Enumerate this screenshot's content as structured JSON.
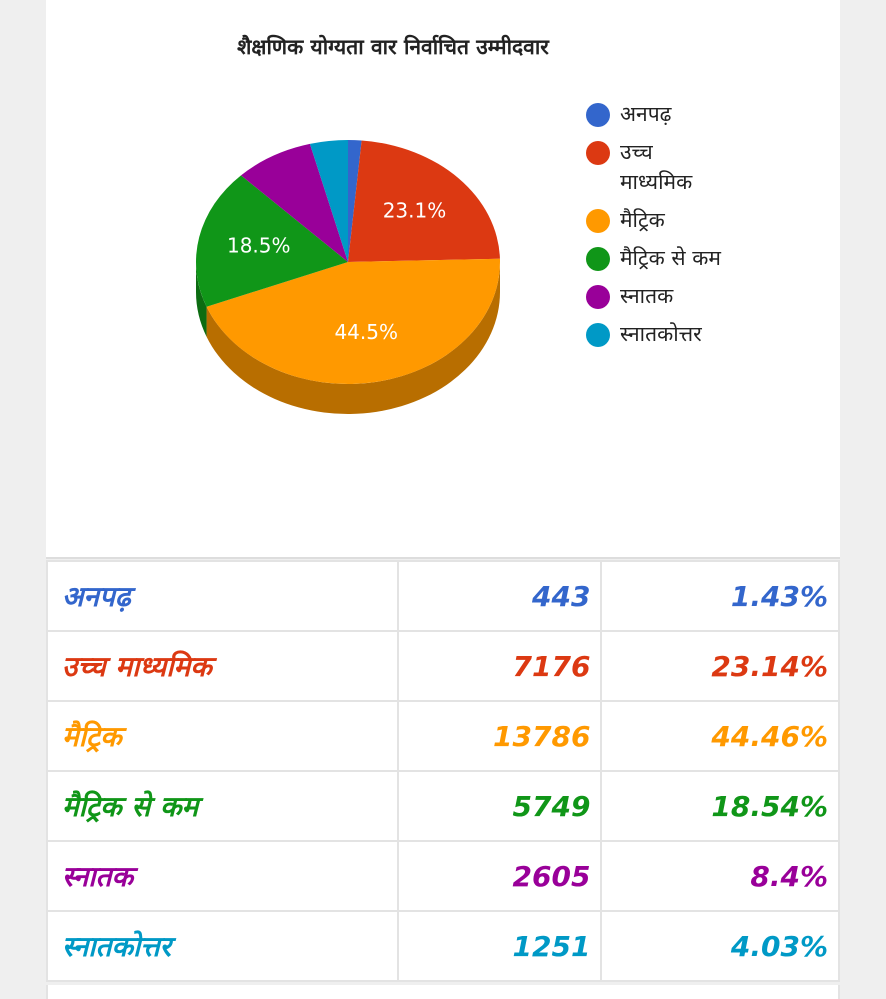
{
  "chart_data": {
    "type": "pie",
    "title": "शैक्षणिक योग्यता वार निर्वाचित उम्मीदवार",
    "categories": [
      "अनपढ़",
      "उच्च माध्यमिक",
      "मैट्रिक",
      "मैट्रिक से कम",
      "स्नातक",
      "स्नातकोत्तर"
    ],
    "values": [
      1.43,
      23.14,
      44.46,
      18.54,
      8.4,
      4.03
    ],
    "value_labels": [
      null,
      "23.1%",
      "44.5%",
      "18.5%",
      null,
      null
    ],
    "colors": [
      "#3366cc",
      "#dc3912",
      "#ff9900",
      "#109618",
      "#990099",
      "#0099c6"
    ],
    "legend": "right"
  },
  "table": {
    "rows": [
      [
        "अनपढ़",
        443,
        "1.43%"
      ],
      [
        "उच्च माध्यमिक",
        7176,
        "23.14%"
      ],
      [
        "मैट्रिक",
        13786,
        "44.46%"
      ],
      [
        "मैट्रिक से कम",
        5749,
        "18.54%"
      ],
      [
        "स्नातक",
        2605,
        "8.4%"
      ],
      [
        "स्नातकोत्तर",
        1251,
        "4.03%"
      ]
    ]
  }
}
